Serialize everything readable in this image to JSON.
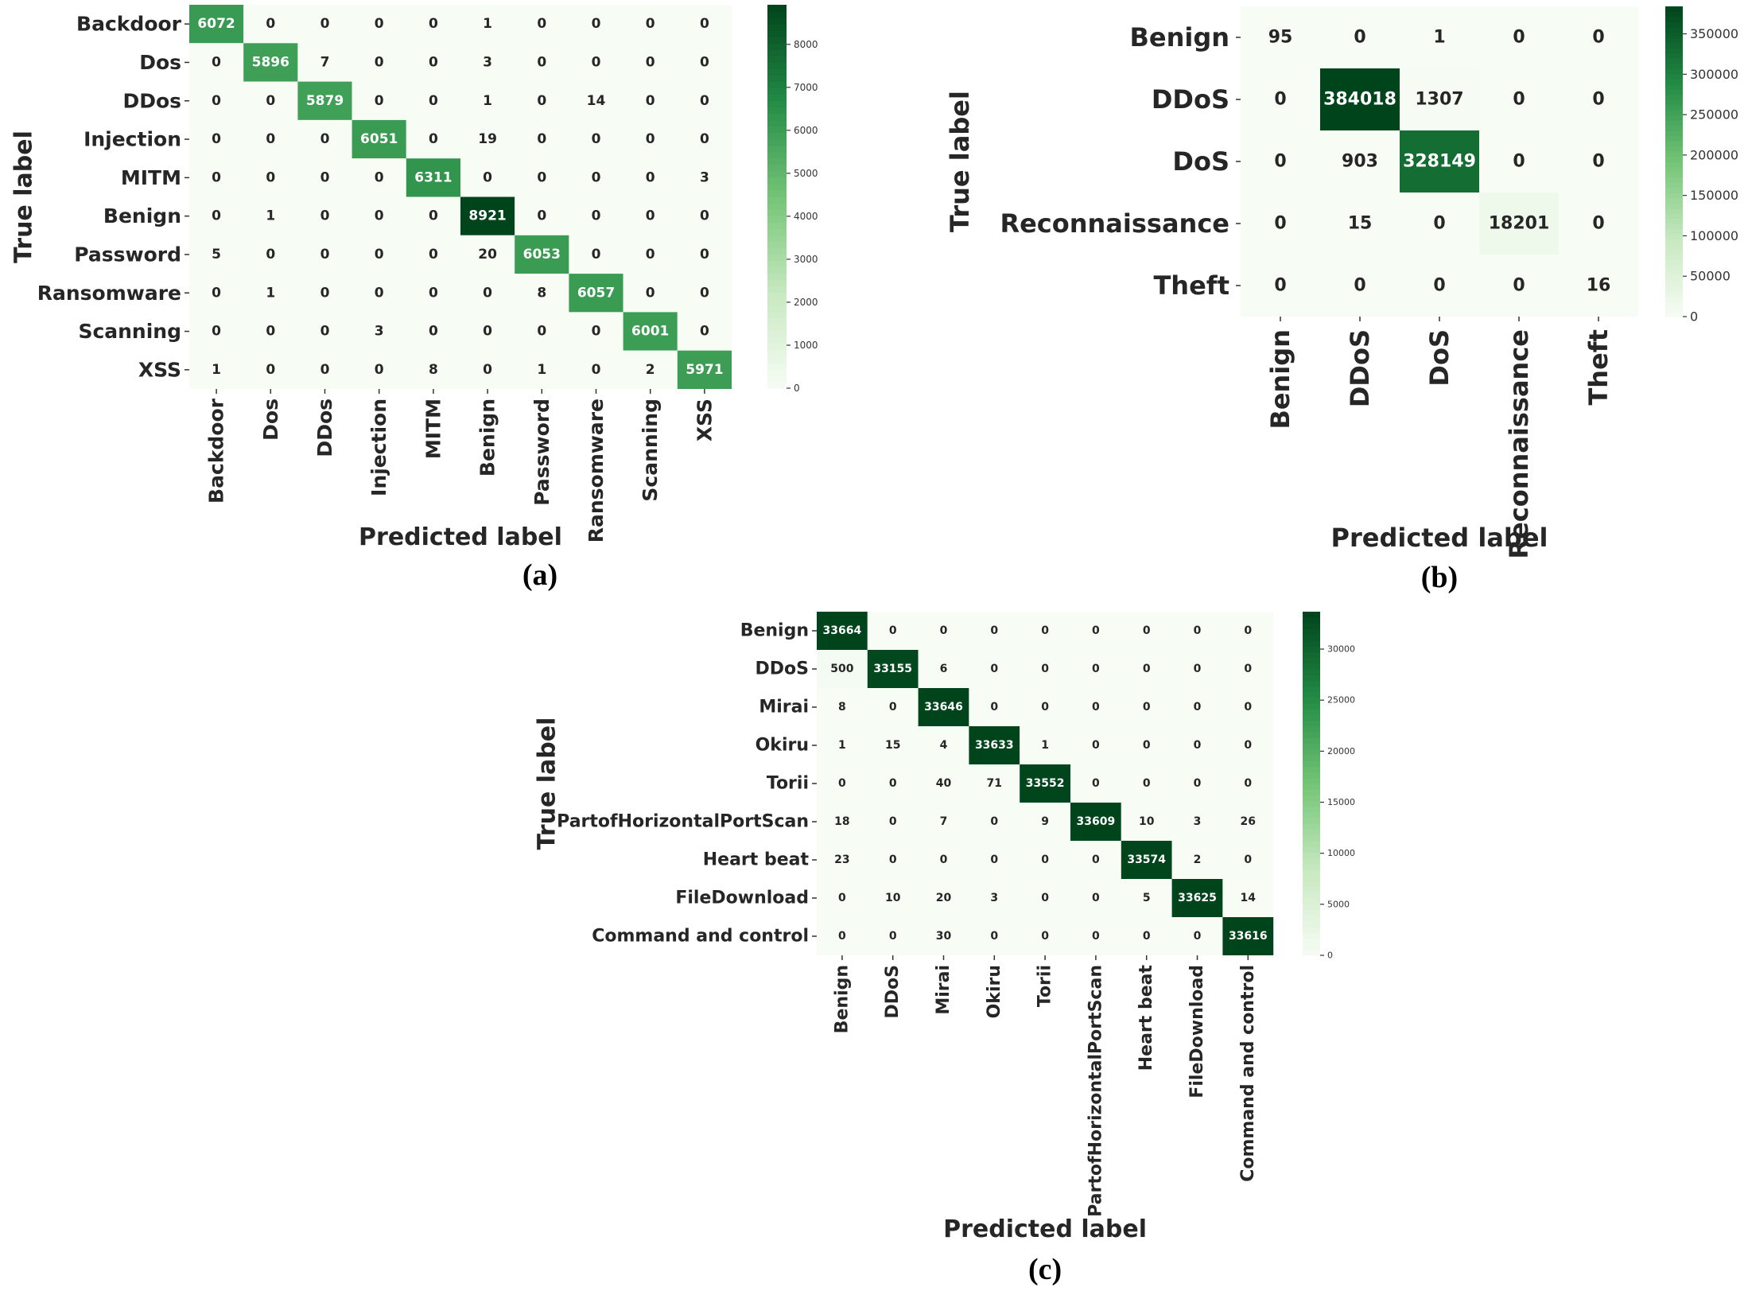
{
  "colorscale": {
    "low": "#f7fcf5",
    "mid_low": "#c7e9c0",
    "mid": "#74c476",
    "mid_high": "#238b45",
    "high": "#00441b"
  },
  "chart_data": [
    {
      "type": "heatmap",
      "panel": "(a)",
      "xlabel": "Predicted label",
      "ylabel": "True label",
      "rows": [
        "Backdoor",
        "Dos",
        "DDos",
        "Injection",
        "MITM",
        "Benign",
        "Password",
        "Ransomware",
        "Scanning",
        "XSS"
      ],
      "cols": [
        "Backdoor",
        "Dos",
        "DDos",
        "Injection",
        "MITM",
        "Benign",
        "Password",
        "Ransomware",
        "Scanning",
        "XSS"
      ],
      "matrix": [
        [
          6072,
          0,
          0,
          0,
          0,
          1,
          0,
          0,
          0,
          0
        ],
        [
          0,
          5896,
          7,
          0,
          0,
          3,
          0,
          0,
          0,
          0
        ],
        [
          0,
          0,
          5879,
          0,
          0,
          1,
          0,
          14,
          0,
          0
        ],
        [
          0,
          0,
          0,
          6051,
          0,
          19,
          0,
          0,
          0,
          0
        ],
        [
          0,
          0,
          0,
          0,
          6311,
          0,
          0,
          0,
          0,
          3
        ],
        [
          0,
          1,
          0,
          0,
          0,
          8921,
          0,
          0,
          0,
          0
        ],
        [
          5,
          0,
          0,
          0,
          0,
          20,
          6053,
          0,
          0,
          0
        ],
        [
          0,
          1,
          0,
          0,
          0,
          0,
          8,
          6057,
          0,
          0
        ],
        [
          0,
          0,
          0,
          3,
          0,
          0,
          0,
          0,
          6001,
          0
        ],
        [
          1,
          0,
          0,
          0,
          8,
          0,
          1,
          0,
          2,
          5971
        ]
      ],
      "colorbar": {
        "range": [
          0,
          8921
        ],
        "ticks": [
          0,
          1000,
          2000,
          3000,
          4000,
          5000,
          6000,
          7000,
          8000
        ]
      }
    },
    {
      "type": "heatmap",
      "panel": "(b)",
      "xlabel": "Predicted label",
      "ylabel": "True label",
      "rows": [
        "Benign",
        "DDoS",
        "DoS",
        "Reconnaissance",
        "Theft"
      ],
      "cols": [
        "Benign",
        "DDoS",
        "DoS",
        "Reconnaissance",
        "Theft"
      ],
      "matrix": [
        [
          95,
          0,
          1,
          0,
          0
        ],
        [
          0,
          384018,
          1307,
          0,
          0
        ],
        [
          0,
          903,
          328149,
          0,
          0
        ],
        [
          0,
          15,
          0,
          18201,
          0
        ],
        [
          0,
          0,
          0,
          0,
          16
        ]
      ],
      "colorbar": {
        "range": [
          0,
          384018
        ],
        "ticks": [
          0,
          50000,
          100000,
          150000,
          200000,
          250000,
          300000,
          350000
        ]
      }
    },
    {
      "type": "heatmap",
      "panel": "(c)",
      "xlabel": "Predicted label",
      "ylabel": "True label",
      "rows": [
        "Benign",
        "DDoS",
        "Mirai",
        "Okiru",
        "Torii",
        "PartofHorizontalPortScan",
        "Heart beat",
        "FileDownload",
        "Command and control"
      ],
      "cols": [
        "Benign",
        "DDoS",
        "Mirai",
        "Okiru",
        "Torii",
        "PartofHorizontalPortScan",
        "Heart beat",
        "FileDownload",
        "Command and control"
      ],
      "matrix": [
        [
          33664,
          0,
          0,
          0,
          0,
          0,
          0,
          0,
          0
        ],
        [
          500,
          33155,
          6,
          0,
          0,
          0,
          0,
          0,
          0
        ],
        [
          8,
          0,
          33646,
          0,
          0,
          0,
          0,
          0,
          0
        ],
        [
          1,
          15,
          4,
          33633,
          1,
          0,
          0,
          0,
          0
        ],
        [
          0,
          0,
          40,
          71,
          33552,
          0,
          0,
          0,
          0
        ],
        [
          18,
          0,
          7,
          0,
          9,
          33609,
          10,
          3,
          26
        ],
        [
          23,
          0,
          0,
          0,
          0,
          0,
          33574,
          2,
          0
        ],
        [
          0,
          10,
          20,
          3,
          0,
          0,
          5,
          33625,
          14
        ],
        [
          0,
          0,
          30,
          0,
          0,
          0,
          0,
          0,
          33616
        ]
      ],
      "colorbar": {
        "range": [
          0,
          33664
        ],
        "ticks": [
          0,
          5000,
          10000,
          15000,
          20000,
          25000,
          30000
        ]
      }
    }
  ]
}
